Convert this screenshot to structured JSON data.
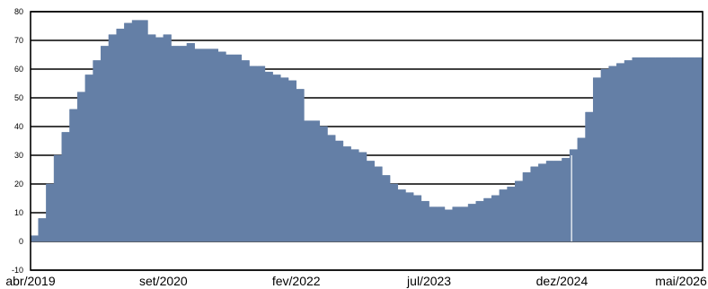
{
  "chart_data": {
    "type": "area",
    "title": "",
    "xlabel": "",
    "ylabel": "",
    "ylim": [
      -10,
      80
    ],
    "yticks": [
      -10,
      0,
      10,
      20,
      30,
      40,
      50,
      60,
      70,
      80
    ],
    "xlim": [
      "2019-04",
      "2026-06"
    ],
    "xticks": [
      {
        "date": "2019-04",
        "label": "abr/2019"
      },
      {
        "date": "2020-09",
        "label": "set/2020"
      },
      {
        "date": "2022-02",
        "label": "fev/2022"
      },
      {
        "date": "2023-07",
        "label": "jul/2023"
      },
      {
        "date": "2024-12",
        "label": "dez/2024"
      },
      {
        "date": "2026-05",
        "label": "mai/2026"
      }
    ],
    "grid": "horizontal",
    "fill_color": "#647fa6",
    "series": [
      {
        "name": "",
        "x": [
          "2019-04",
          "2019-05",
          "2019-06",
          "2019-07",
          "2019-08",
          "2019-09",
          "2019-10",
          "2019-11",
          "2019-12",
          "2020-01",
          "2020-02",
          "2020-03",
          "2020-04",
          "2020-05",
          "2020-06",
          "2020-07",
          "2020-08",
          "2020-09",
          "2020-10",
          "2020-11",
          "2020-12",
          "2021-01",
          "2021-02",
          "2021-03",
          "2021-04",
          "2021-05",
          "2021-06",
          "2021-07",
          "2021-08",
          "2021-09",
          "2021-10",
          "2021-11",
          "2021-12",
          "2022-01",
          "2022-02",
          "2022-03",
          "2022-04",
          "2022-05",
          "2022-06",
          "2022-07",
          "2022-08",
          "2022-09",
          "2022-10",
          "2022-11",
          "2022-12",
          "2023-01",
          "2023-02",
          "2023-03",
          "2023-04",
          "2023-05",
          "2023-06",
          "2023-07",
          "2023-08",
          "2023-09",
          "2023-10",
          "2023-11",
          "2023-12",
          "2024-01",
          "2024-02",
          "2024-03",
          "2024-04",
          "2024-05",
          "2024-06",
          "2024-07",
          "2024-08",
          "2024-09",
          "2024-10",
          "2024-11",
          "2024-12",
          "2025-01",
          "2025-02",
          "2025-03",
          "2025-04",
          "2025-05",
          "2025-06",
          "2025-07",
          "2025-08",
          "2025-09",
          "2025-10",
          "2025-11",
          "2025-12",
          "2026-01",
          "2026-02",
          "2026-03",
          "2026-04",
          "2026-05",
          "2026-06"
        ],
        "values": [
          2,
          8,
          20,
          30,
          38,
          46,
          52,
          58,
          63,
          68,
          72,
          74,
          76,
          77,
          77,
          72,
          71,
          72,
          68,
          68,
          69,
          67,
          67,
          67,
          66,
          65,
          65,
          63,
          61,
          61,
          59,
          58,
          57,
          56,
          53,
          42,
          42,
          40,
          37,
          35,
          33,
          32,
          31,
          28,
          26,
          23,
          20,
          18,
          17,
          16,
          14,
          12,
          12,
          11,
          12,
          12,
          13,
          14,
          15,
          16,
          18,
          19,
          21,
          24,
          26,
          27,
          28,
          28,
          29,
          32,
          36,
          45,
          57,
          60,
          61,
          62,
          63,
          64,
          64,
          64,
          64,
          64,
          64,
          64,
          64,
          64,
          64
        ]
      }
    ]
  }
}
